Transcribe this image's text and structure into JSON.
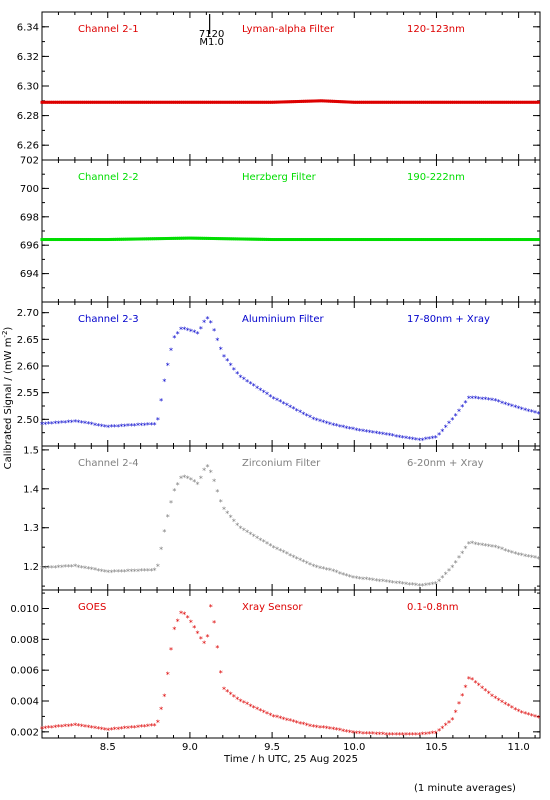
{
  "figure": {
    "ylabel": "Calibrated Signal / (mW m",
    "ylabel_sup": "-2",
    "ylabel_end": ")",
    "xlabel": "Time / h UTC, 25 Aug 2025",
    "footnote": "(1 minute averages)",
    "flare_marker": {
      "time_label": "7120",
      "class_label": "M1.0",
      "x": 9.12
    }
  },
  "chart_data": [
    {
      "type": "scatter",
      "channel": "Channel 2-1",
      "filter": "Lyman-alpha Filter",
      "band": "120-123nm",
      "color": "#dd0000",
      "ylim": [
        6.25,
        6.35
      ],
      "yticks": [
        "6.26",
        "6.28",
        "6.30",
        "6.32",
        "6.34"
      ],
      "ytick_values": [
        6.26,
        6.28,
        6.3,
        6.32,
        6.34
      ],
      "x": [
        8.1,
        8.5,
        9.0,
        9.5,
        9.8,
        10.0,
        10.5,
        11.0,
        11.12
      ],
      "y": [
        6.289,
        6.289,
        6.289,
        6.289,
        6.29,
        6.289,
        6.289,
        6.289,
        6.289
      ]
    },
    {
      "type": "scatter",
      "channel": "Channel 2-2",
      "filter": "Herzberg Filter",
      "band": "190-222nm",
      "color": "#00dd00",
      "ylim": [
        692,
        702
      ],
      "yticks": [
        "694",
        "696",
        "698",
        "700",
        "702"
      ],
      "ytick_values": [
        694,
        696,
        698,
        700,
        702
      ],
      "x": [
        8.1,
        8.5,
        9.0,
        9.5,
        10.0,
        10.5,
        11.0,
        11.12
      ],
      "y": [
        696.4,
        696.4,
        696.5,
        696.4,
        696.4,
        696.4,
        696.4,
        696.4
      ]
    },
    {
      "type": "scatter",
      "channel": "Channel 2-3",
      "filter": "Aluminium Filter",
      "band": "17-80nm + Xray",
      "color": "#0000cc",
      "ylim": [
        2.45,
        2.72
      ],
      "yticks": [
        "2.50",
        "2.55",
        "2.60",
        "2.65",
        "2.70"
      ],
      "ytick_values": [
        2.5,
        2.55,
        2.6,
        2.65,
        2.7
      ],
      "x": [
        8.1,
        8.3,
        8.5,
        8.8,
        8.85,
        8.9,
        8.95,
        9.0,
        9.05,
        9.1,
        9.13,
        9.2,
        9.3,
        9.5,
        9.75,
        9.85,
        10.0,
        10.2,
        10.4,
        10.5,
        10.6,
        10.7,
        10.85,
        11.0,
        11.12
      ],
      "y": [
        2.49,
        2.495,
        2.485,
        2.49,
        2.58,
        2.65,
        2.67,
        2.665,
        2.66,
        2.69,
        2.68,
        2.62,
        2.58,
        2.54,
        2.5,
        2.49,
        2.48,
        2.47,
        2.46,
        2.465,
        2.5,
        2.54,
        2.535,
        2.52,
        2.51
      ]
    },
    {
      "type": "scatter",
      "channel": "Channel 2-4",
      "filter": "Zirconium Filter",
      "band": "6-20nm + Xray",
      "color": "#808080",
      "ylim": [
        1.14,
        1.51
      ],
      "yticks": [
        "1.2",
        "1.3",
        "1.4",
        "1.5"
      ],
      "ytick_values": [
        1.2,
        1.3,
        1.4,
        1.5
      ],
      "x": [
        8.1,
        8.3,
        8.5,
        8.8,
        8.85,
        8.9,
        8.95,
        9.0,
        9.05,
        9.1,
        9.13,
        9.2,
        9.3,
        9.5,
        9.75,
        9.85,
        10.0,
        10.2,
        10.4,
        10.5,
        10.6,
        10.7,
        10.85,
        11.0,
        11.12
      ],
      "y": [
        1.195,
        1.2,
        1.185,
        1.19,
        1.3,
        1.39,
        1.43,
        1.425,
        1.41,
        1.46,
        1.44,
        1.35,
        1.3,
        1.25,
        1.2,
        1.19,
        1.17,
        1.16,
        1.15,
        1.155,
        1.2,
        1.26,
        1.25,
        1.23,
        1.22
      ]
    },
    {
      "type": "scatter",
      "channel": "GOES",
      "filter": "Xray Sensor",
      "band": "0.1-0.8nm",
      "color": "#dd0000",
      "ylim": [
        0.0016,
        0.0112
      ],
      "yticks": [
        "0.002",
        "0.004",
        "0.006",
        "0.008",
        "0.010"
      ],
      "ytick_values": [
        0.002,
        0.004,
        0.006,
        0.008,
        0.01
      ],
      "x": [
        8.1,
        8.3,
        8.5,
        8.8,
        8.85,
        8.9,
        8.95,
        9.0,
        9.05,
        9.1,
        9.13,
        9.2,
        9.3,
        9.5,
        9.75,
        9.85,
        10.0,
        10.2,
        10.4,
        10.5,
        10.6,
        10.7,
        10.85,
        11.0,
        11.12
      ],
      "y": [
        0.0022,
        0.0024,
        0.0021,
        0.0024,
        0.0045,
        0.0085,
        0.0098,
        0.0092,
        0.0083,
        0.0075,
        0.0104,
        0.0048,
        0.004,
        0.003,
        0.0023,
        0.0022,
        0.0019,
        0.0018,
        0.0018,
        0.0019,
        0.0028,
        0.0055,
        0.0042,
        0.0033,
        0.0029
      ]
    }
  ],
  "x_axis": {
    "xlim": [
      8.1,
      11.13
    ],
    "xticks": [
      "8.5",
      "9.0",
      "9.5",
      "10.0",
      "10.5",
      "11.0"
    ],
    "xtick_values": [
      8.5,
      9.0,
      9.5,
      10.0,
      10.5,
      11.0
    ]
  }
}
